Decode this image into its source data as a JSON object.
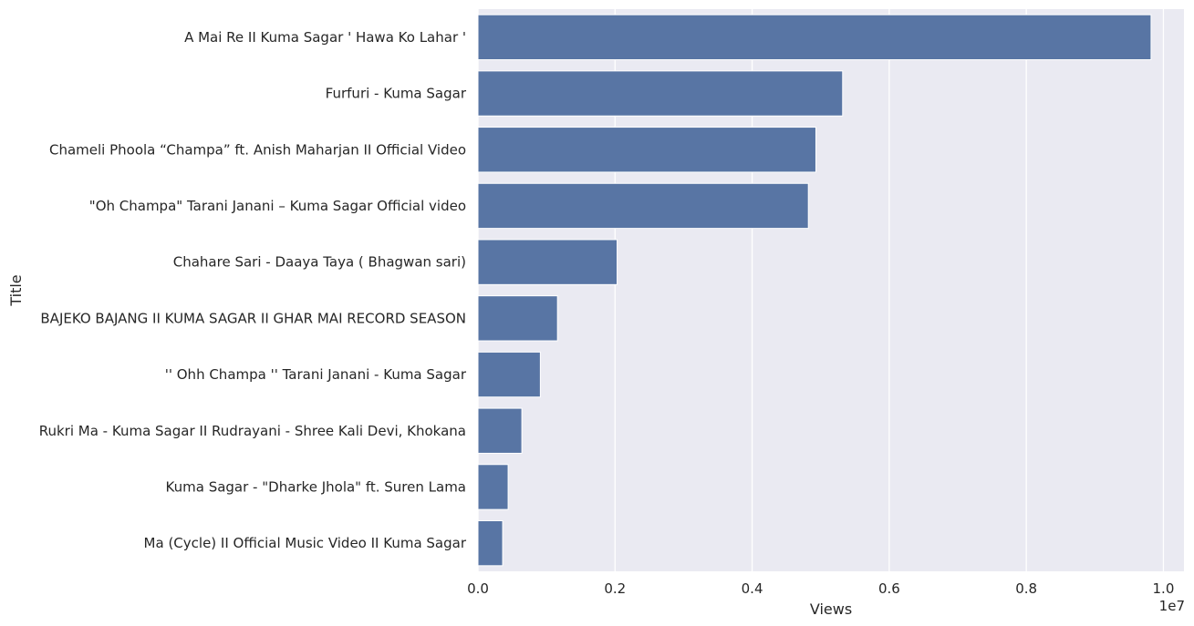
{
  "chart_data": {
    "type": "bar",
    "orientation": "horizontal",
    "categories": [
      "A Mai Re II Kuma Sagar  ' Hawa Ko Lahar '",
      "Furfuri - Kuma Sagar",
      "Chameli Phoola “Champa” ft. Anish Maharjan II Official Video",
      "\"Oh Champa\" Tarani Janani – Kuma Sagar Official video",
      "Chahare Sari - Daaya Taya ( Bhagwan sari)",
      "BAJEKO BAJANG II KUMA SAGAR II GHAR MAI RECORD SEASON",
      "'' Ohh Champa ''  Tarani Janani - Kuma Sagar",
      "Rukri Ma - Kuma Sagar II Rudrayani - Shree Kali Devi, Khokana",
      "Kuma Sagar - \"Dharke Jhola\" ft. Suren Lama",
      "Ma (Cycle) II Official Music Video II Kuma Sagar"
    ],
    "values": [
      9820000,
      5320000,
      4930000,
      4820000,
      2030000,
      1160000,
      910000,
      640000,
      440000,
      360000
    ],
    "xlabel": "Views",
    "ylabel": "Title",
    "xlim": [
      0,
      10300000
    ],
    "x_ticks": [
      0,
      2000000,
      4000000,
      6000000,
      8000000,
      10000000
    ],
    "x_tick_labels": [
      "0.0",
      "0.2",
      "0.4",
      "0.6",
      "0.8",
      "1.0"
    ],
    "offset_text": "1e7",
    "grid": true,
    "bar_color": "#5875a4",
    "background_color": "#eaeaf2",
    "grid_color": "#ffffff"
  }
}
